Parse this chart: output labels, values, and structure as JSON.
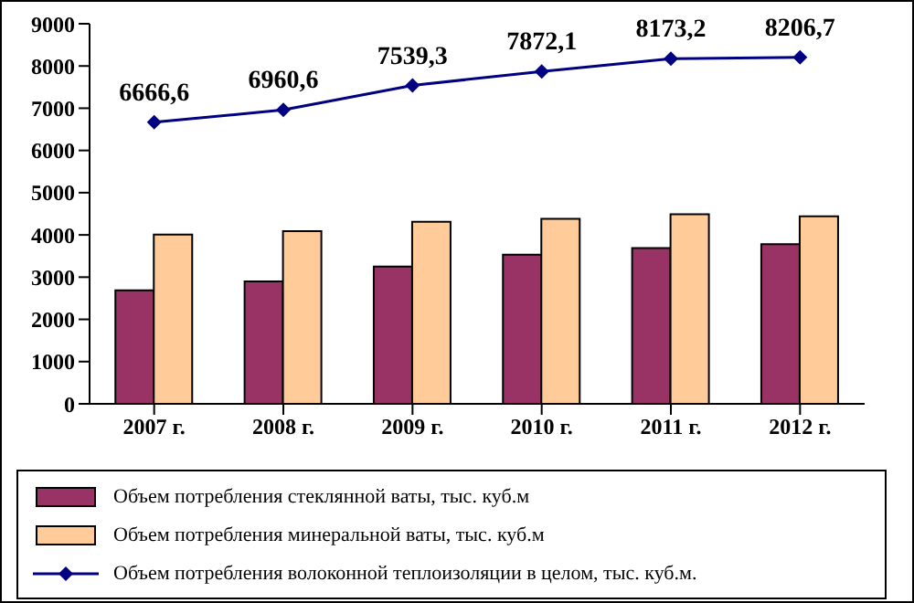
{
  "chart_data": {
    "type": "bar",
    "categories": [
      "2007 г.",
      "2008 г.",
      "2009 г.",
      "2010 г.",
      "2011 г.",
      "2012 г."
    ],
    "series": [
      {
        "name": "Объем потребления стеклянной ваты, тыс. куб.м",
        "color": "#993366",
        "values": [
          2690,
          2900,
          3250,
          3530,
          3690,
          3780
        ]
      },
      {
        "name": "Объем потребления минеральной ваты, тыс. куб.м",
        "color": "#ffcc99",
        "values": [
          4010,
          4090,
          4310,
          4380,
          4490,
          4440
        ]
      },
      {
        "name": "Объем потребления волоконной теплоизоляции в целом, тыс. куб.м.",
        "type": "line",
        "color": "#000080",
        "values": [
          6666.6,
          6960.6,
          7539.3,
          7872.1,
          8173.2,
          8206.7
        ],
        "value_labels": [
          "6666,6",
          "6960,6",
          "7539,3",
          "7872,1",
          "8173,2",
          "8206,7"
        ],
        "marker": "diamond"
      }
    ],
    "ylim": [
      0,
      9000
    ],
    "yticks": [
      0,
      1000,
      2000,
      3000,
      4000,
      5000,
      6000,
      7000,
      8000,
      9000
    ],
    "grid": false,
    "legend": "bottom"
  }
}
